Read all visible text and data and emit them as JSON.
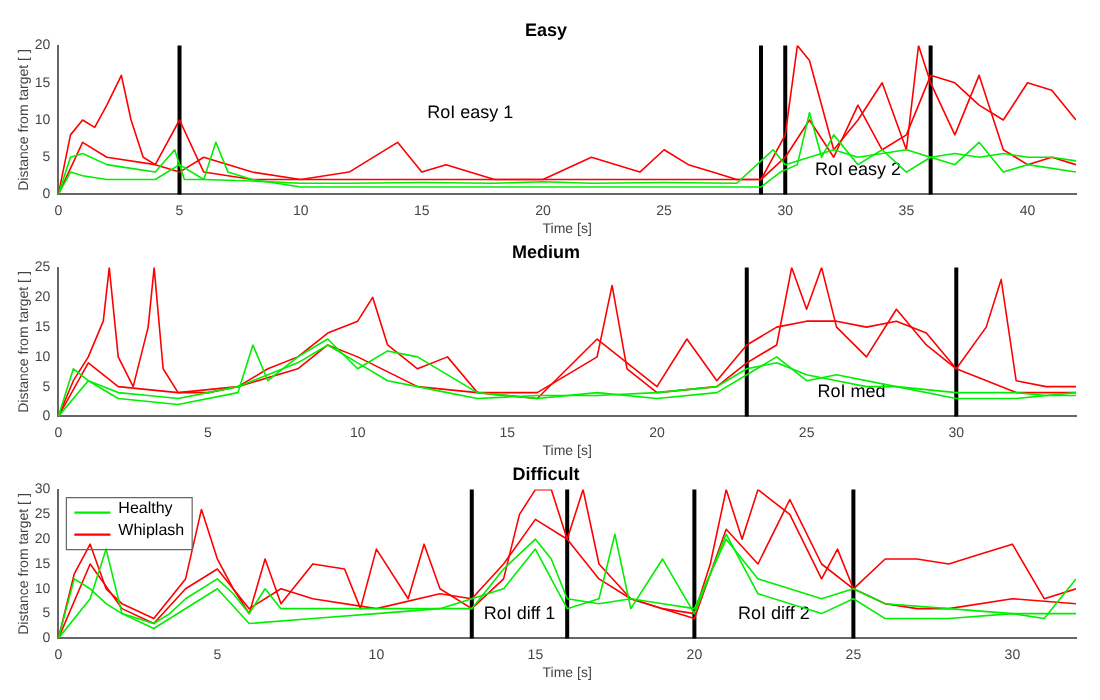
{
  "chart_data": [
    {
      "type": "line",
      "title": "Easy",
      "xlabel": "Time [s]",
      "ylabel": "Distance from target [ ]",
      "xlim": [
        0,
        42
      ],
      "xticks": [
        0,
        5,
        10,
        15,
        20,
        25,
        30,
        35,
        40
      ],
      "ylim": [
        0,
        20
      ],
      "yticks": [
        0,
        5,
        10,
        15,
        20
      ],
      "grid": false,
      "legend": false,
      "marker": "none",
      "line_style": "solid",
      "series": [
        {
          "color": "#00ee00",
          "x": [
            0,
            0.5,
            1,
            2,
            3,
            4,
            4.8,
            5.2,
            6,
            8,
            10,
            12,
            15,
            18,
            20,
            22,
            25,
            28,
            29.5,
            30,
            31,
            32,
            33,
            34,
            35,
            36,
            37,
            38,
            39,
            40,
            41,
            42
          ],
          "values": [
            0,
            5,
            5.5,
            4,
            3.5,
            3,
            6,
            2,
            2,
            1.8,
            1.5,
            1.5,
            1.6,
            1.5,
            1.7,
            1.5,
            1.6,
            1.5,
            6,
            4,
            5,
            6,
            5,
            5.5,
            6,
            5,
            5.5,
            5,
            5.5,
            5,
            5,
            4.5
          ]
        },
        {
          "color": "#00ee00",
          "x": [
            0,
            0.5,
            1,
            2,
            4,
            5,
            6,
            6.5,
            7,
            8,
            10,
            14,
            16,
            20,
            22,
            26,
            29,
            29.8,
            30.5,
            31,
            31.5,
            32,
            33,
            34,
            35,
            36,
            37,
            38,
            39,
            40,
            42
          ],
          "values": [
            0,
            3,
            2.5,
            2,
            2,
            4,
            2,
            7,
            3,
            2,
            1,
            1,
            1,
            1,
            1,
            1,
            1,
            3,
            4,
            11,
            5,
            8,
            4,
            6,
            3,
            5,
            4,
            7,
            3,
            4,
            3
          ]
        },
        {
          "color": "#ff0000",
          "x": [
            0,
            0.5,
            1,
            1.5,
            2,
            2.6,
            3,
            3.5,
            4,
            5,
            6,
            8,
            10,
            12,
            14,
            16,
            18,
            20,
            22,
            24,
            26,
            28,
            29,
            30,
            30.5,
            31,
            32,
            33,
            34,
            35,
            35.5,
            36,
            37,
            38,
            39,
            40,
            41,
            42
          ],
          "values": [
            0,
            8,
            10,
            9,
            12,
            16,
            10,
            5,
            4,
            10,
            3,
            2,
            2,
            2,
            2,
            2,
            2,
            2,
            2,
            2,
            2,
            2,
            2,
            8,
            20,
            18,
            6,
            10,
            15,
            6,
            20,
            15,
            8,
            16,
            6,
            4,
            5,
            4
          ]
        },
        {
          "color": "#ff0000",
          "x": [
            0,
            1,
            2,
            4,
            5,
            6,
            8,
            10,
            12,
            14,
            15,
            16,
            18,
            20,
            22,
            24,
            25,
            26,
            27,
            28,
            29,
            30,
            31,
            32,
            33,
            34,
            35,
            36,
            37,
            38,
            39,
            40,
            41,
            42
          ],
          "values": [
            0,
            7,
            5,
            4,
            3,
            5,
            3,
            2,
            3,
            7,
            3,
            4,
            2,
            2,
            5,
            3,
            6,
            4,
            3,
            2,
            2,
            5,
            10,
            5,
            12,
            6,
            8,
            16,
            15,
            12,
            10,
            15,
            14,
            10
          ]
        }
      ],
      "ref_lines": [
        {
          "axis": "x",
          "value": 5,
          "color": "#000000"
        },
        {
          "axis": "x",
          "value": 29,
          "color": "#000000"
        },
        {
          "axis": "x",
          "value": 30,
          "color": "#000000"
        },
        {
          "axis": "x",
          "value": 36,
          "color": "#000000"
        }
      ],
      "annotations": [
        "RoI easy 1",
        "RoI easy 2"
      ]
    },
    {
      "type": "line",
      "title": "Medium",
      "xlabel": "Time [s]",
      "ylabel": "Distance from target [ ]",
      "xlim": [
        0,
        34
      ],
      "xticks": [
        0,
        5,
        10,
        15,
        20,
        25,
        30
      ],
      "ylim": [
        0,
        25
      ],
      "yticks": [
        0,
        5,
        10,
        15,
        20,
        25
      ],
      "grid": false,
      "legend": false,
      "marker": "none",
      "line_style": "solid",
      "series": [
        {
          "color": "#00ee00",
          "x": [
            0,
            0.5,
            1,
            2,
            3,
            4,
            5,
            6,
            7,
            8,
            9,
            10,
            11,
            12,
            13,
            14,
            16,
            18,
            20,
            22,
            23,
            24,
            25,
            26,
            27,
            28,
            30,
            31,
            32,
            33,
            34
          ],
          "values": [
            0,
            8,
            6,
            4,
            3.5,
            3,
            4,
            5,
            7,
            9,
            12,
            9,
            6,
            5,
            4,
            3,
            3.5,
            3.5,
            4,
            5,
            8,
            9,
            7,
            6,
            5,
            5,
            4,
            4,
            4,
            3.5,
            3.5
          ]
        },
        {
          "color": "#00ee00",
          "x": [
            0,
            1,
            2,
            4,
            6,
            6.5,
            7,
            8,
            9,
            10,
            11,
            12,
            14,
            16,
            18,
            20,
            22,
            24,
            25,
            26,
            28,
            30,
            32,
            34
          ],
          "values": [
            0,
            6,
            3,
            2,
            4,
            12,
            6,
            10,
            13,
            8,
            11,
            10,
            4,
            3,
            4,
            3,
            4,
            10,
            6,
            7,
            5,
            3,
            3,
            4
          ]
        },
        {
          "color": "#ff0000",
          "x": [
            0,
            0.5,
            1,
            1.5,
            1.7,
            2,
            2.5,
            3,
            3.2,
            3.5,
            4,
            5,
            6,
            7,
            8,
            9,
            10,
            10.5,
            11,
            12,
            13,
            14,
            16,
            18,
            18.5,
            19,
            20,
            22,
            23,
            24,
            24.5,
            25,
            25.5,
            26,
            27,
            28,
            29,
            30,
            31,
            31.5,
            32,
            33,
            34
          ],
          "values": [
            0,
            6,
            10,
            16,
            25,
            10,
            5,
            15,
            25,
            8,
            4,
            4,
            5,
            8,
            10,
            14,
            16,
            20,
            12,
            8,
            10,
            4,
            4,
            10,
            22,
            8,
            4,
            5,
            9,
            12,
            25,
            18,
            25,
            15,
            10,
            18,
            12,
            8,
            15,
            23,
            6,
            5,
            5
          ]
        },
        {
          "color": "#ff0000",
          "x": [
            0,
            1,
            2,
            4,
            6,
            8,
            9,
            10,
            12,
            14,
            16,
            18,
            20,
            21,
            22,
            23,
            24,
            25,
            26,
            27,
            28,
            29,
            30,
            32,
            34
          ],
          "values": [
            0,
            9,
            5,
            4,
            5,
            8,
            12,
            10,
            5,
            4,
            3,
            13,
            5,
            13,
            6,
            12,
            15,
            16,
            16,
            15,
            16,
            14,
            8,
            4,
            4
          ]
        }
      ],
      "ref_lines": [
        {
          "axis": "x",
          "value": 23,
          "color": "#000000"
        },
        {
          "axis": "x",
          "value": 30,
          "color": "#000000"
        }
      ],
      "annotations": [
        "RoI med"
      ]
    },
    {
      "type": "line",
      "title": "Difficult",
      "xlabel": "Time [s]",
      "ylabel": "Distance from target [ ]",
      "xlim": [
        0,
        32
      ],
      "xticks": [
        0,
        5,
        10,
        15,
        20,
        25,
        30
      ],
      "ylim": [
        0,
        30
      ],
      "yticks": [
        0,
        5,
        10,
        15,
        20,
        25,
        30
      ],
      "grid": false,
      "legend": "top left",
      "marker": "none",
      "line_style": "solid",
      "series": [
        {
          "name": "Healthy",
          "color": "#00ee00",
          "x": [
            0,
            0.5,
            1,
            1.5,
            2,
            3,
            3.5,
            4,
            5,
            5.5,
            6,
            6.5,
            7,
            8,
            10,
            12,
            13,
            14,
            15,
            15.5,
            16,
            17,
            18,
            19,
            20,
            21,
            22,
            23,
            24,
            25,
            26,
            28,
            30,
            32
          ],
          "values": [
            0,
            12,
            10,
            7,
            5,
            3,
            5,
            8,
            12,
            9,
            5,
            10,
            6,
            6,
            6,
            6,
            6,
            14,
            20,
            16,
            8,
            7,
            8,
            7,
            6,
            20,
            12,
            10,
            8,
            10,
            7,
            6,
            5,
            5
          ]
        },
        {
          "color": "#00ee00",
          "x": [
            0,
            1,
            1.5,
            2,
            3,
            5,
            6,
            8,
            10,
            12,
            14,
            15,
            16,
            17,
            17.5,
            18,
            19,
            20,
            21,
            22,
            24,
            25,
            26,
            28,
            30,
            31,
            32
          ],
          "values": [
            0,
            8,
            18,
            5,
            2,
            10,
            3,
            4,
            5,
            6,
            10,
            18,
            6,
            8,
            21,
            6,
            16,
            5,
            21,
            9,
            5,
            8,
            4,
            4,
            5,
            4,
            12
          ]
        },
        {
          "name": "Whiplash",
          "color": "#ff0000",
          "x": [
            0,
            0.5,
            1,
            1.5,
            2,
            3,
            4,
            4.5,
            5,
            5.5,
            6,
            6.5,
            7,
            8,
            9,
            9.5,
            10,
            11,
            11.5,
            12,
            13,
            14,
            14.5,
            15,
            15.5,
            16,
            17,
            18,
            19,
            20,
            20.5,
            21,
            21.5,
            22,
            23,
            24,
            24.5,
            25,
            26,
            27,
            28,
            29,
            30,
            31,
            32
          ],
          "values": [
            0,
            13,
            19,
            10,
            7,
            4,
            12,
            26,
            16,
            10,
            5,
            16,
            7,
            15,
            14,
            6,
            18,
            8,
            19,
            10,
            6,
            12,
            25,
            30,
            30,
            20,
            12,
            8,
            6,
            5,
            15,
            30,
            20,
            30,
            25,
            12,
            18,
            10,
            16,
            16,
            15,
            17,
            19,
            8,
            10
          ]
        },
        {
          "color": "#ff0000",
          "x": [
            0,
            1,
            2,
            3,
            4,
            5,
            6,
            7,
            8,
            10,
            12,
            13,
            14,
            15,
            16,
            16.5,
            17,
            18,
            19,
            20,
            21,
            22,
            23,
            24,
            25,
            26,
            27,
            28,
            30,
            32
          ],
          "values": [
            0,
            15,
            6,
            3,
            10,
            14,
            6,
            10,
            8,
            6,
            9,
            8,
            15,
            24,
            20,
            30,
            15,
            8,
            6,
            4,
            22,
            15,
            28,
            15,
            10,
            7,
            6,
            6,
            8,
            7
          ]
        }
      ],
      "ref_lines": [
        {
          "axis": "x",
          "value": 13,
          "color": "#000000"
        },
        {
          "axis": "x",
          "value": 16,
          "color": "#000000"
        },
        {
          "axis": "x",
          "value": 20,
          "color": "#000000"
        },
        {
          "axis": "x",
          "value": 25,
          "color": "#000000"
        }
      ],
      "annotations": [
        "RoI diff 1",
        "RoI diff 2"
      ]
    }
  ]
}
